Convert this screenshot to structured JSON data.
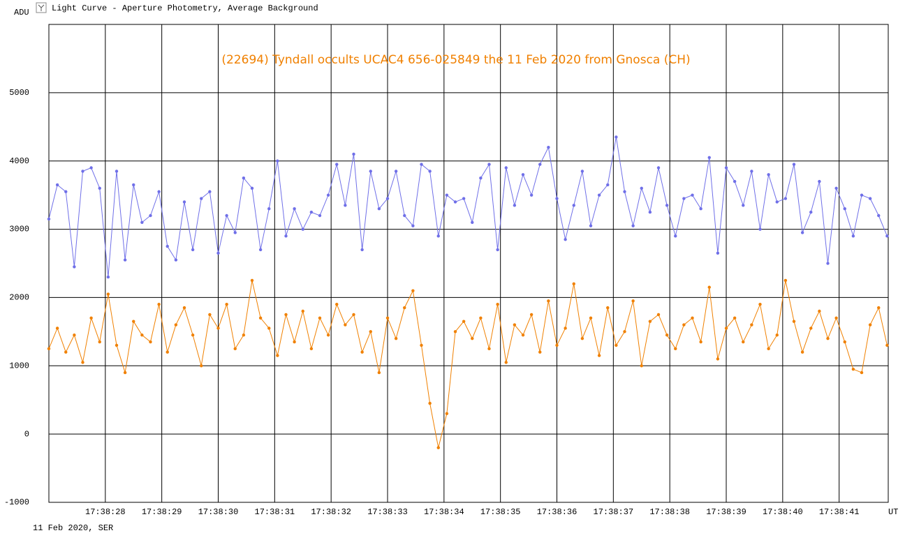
{
  "chart_data": {
    "type": "line",
    "window_title": "Light Curve - Aperture Photometry, Average Background",
    "title": "(22694) Tyndall occults UCAC4 656-025849 the 11 Feb 2020 from Gnosca (CH)",
    "y_label": "ADU",
    "x_label": "UT",
    "footer": "11 Feb 2020, SER",
    "x": [
      27,
      27.15,
      27.3,
      27.45,
      27.6,
      27.75,
      27.9,
      28.05,
      28.2,
      28.35,
      28.5,
      28.65,
      28.8,
      28.95,
      29.1,
      29.25,
      29.4,
      29.55,
      29.7,
      29.85,
      30,
      30.15,
      30.3,
      30.45,
      30.6,
      30.75,
      30.9,
      31.05,
      31.2,
      31.35,
      31.5,
      31.65,
      31.8,
      31.95,
      32.1,
      32.25,
      32.4,
      32.55,
      32.7,
      32.85,
      33,
      33.15,
      33.3,
      33.45,
      33.6,
      33.75,
      33.9,
      34.05,
      34.2,
      34.35,
      34.5,
      34.65,
      34.8,
      34.95,
      35.1,
      35.25,
      35.4,
      35.55,
      35.7,
      35.85,
      36,
      36.15,
      36.3,
      36.45,
      36.6,
      36.75,
      36.9,
      37.05,
      37.2,
      37.35,
      37.5,
      37.65,
      37.8,
      37.95,
      38.1,
      38.25,
      38.4,
      38.55,
      38.7,
      38.85,
      39,
      39.15,
      39.3,
      39.45,
      39.6,
      39.75,
      39.9,
      40.05,
      40.2,
      40.35,
      40.5,
      40.65,
      40.8,
      40.95,
      41.1,
      41.25,
      41.4,
      41.55,
      41.7,
      41.85
    ],
    "series": [
      {
        "color": "#6f6fe8",
        "values": [
          3150,
          3650,
          3550,
          2450,
          3850,
          3900,
          3600,
          2300,
          3850,
          2550,
          3650,
          3100,
          3200,
          3550,
          2750,
          2550,
          3400,
          2700,
          3450,
          3550,
          2650,
          3200,
          2950,
          3750,
          3600,
          2700,
          3300,
          4000,
          2900,
          3300,
          3000,
          3250,
          3200,
          3500,
          3950,
          3350,
          4100,
          2700,
          3850,
          3300,
          3450,
          3850,
          3200,
          3050,
          3950,
          3850,
          2900,
          3500,
          3400,
          3450,
          3100,
          3750,
          3950,
          2700,
          3900,
          3350,
          3800,
          3500,
          3950,
          4200,
          3450,
          2850,
          3350,
          3850,
          3050,
          3500,
          3650,
          4350,
          3550,
          3050,
          3600,
          3250,
          3900,
          3350,
          2900,
          3450,
          3500,
          3300,
          4050,
          2650,
          3900,
          3700,
          3350,
          3850,
          3000,
          3800,
          3400,
          3450,
          3950,
          2950,
          3250,
          3700,
          2500,
          3600,
          3300,
          2900,
          3500,
          3450,
          3200,
          2900
        ]
      },
      {
        "color": "#f08000",
        "values": [
          1250,
          1550,
          1200,
          1450,
          1050,
          1700,
          1350,
          2050,
          1300,
          900,
          1650,
          1450,
          1350,
          1900,
          1200,
          1600,
          1850,
          1450,
          1000,
          1750,
          1550,
          1900,
          1250,
          1450,
          2250,
          1700,
          1550,
          1150,
          1750,
          1350,
          1800,
          1250,
          1700,
          1450,
          1900,
          1600,
          1750,
          1200,
          1500,
          900,
          1700,
          1400,
          1850,
          2100,
          1300,
          450,
          -200,
          300,
          1500,
          1650,
          1400,
          1700,
          1250,
          1900,
          1050,
          1600,
          1450,
          1750,
          1200,
          1950,
          1300,
          1550,
          2200,
          1400,
          1700,
          1150,
          1850,
          1300,
          1500,
          1950,
          1000,
          1650,
          1750,
          1450,
          1250,
          1600,
          1700,
          1350,
          2150,
          1100,
          1550,
          1700,
          1350,
          1600,
          1900,
          1250,
          1450,
          2250,
          1650,
          1200,
          1550,
          1800,
          1400,
          1700,
          1350,
          950,
          900,
          1600,
          1850,
          1300
        ]
      }
    ],
    "xlim": [
      27,
      41.87
    ],
    "xticks": [
      {
        "value": 28,
        "label": "17:38:28"
      },
      {
        "value": 29,
        "label": "17:38:29"
      },
      {
        "value": 30,
        "label": "17:38:30"
      },
      {
        "value": 31,
        "label": "17:38:31"
      },
      {
        "value": 32,
        "label": "17:38:32"
      },
      {
        "value": 33,
        "label": "17:38:33"
      },
      {
        "value": 34,
        "label": "17:38:34"
      },
      {
        "value": 35,
        "label": "17:38:35"
      },
      {
        "value": 36,
        "label": "17:38:36"
      },
      {
        "value": 37,
        "label": "17:38:37"
      },
      {
        "value": 38,
        "label": "17:38:38"
      },
      {
        "value": 39,
        "label": "17:38:39"
      },
      {
        "value": 40,
        "label": "17:38:40"
      },
      {
        "value": 41,
        "label": "17:38:41"
      }
    ],
    "ylim": [
      -1000,
      6000
    ],
    "yticks": [
      -1000,
      0,
      1000,
      2000,
      3000,
      4000,
      5000
    ],
    "grid": true
  }
}
